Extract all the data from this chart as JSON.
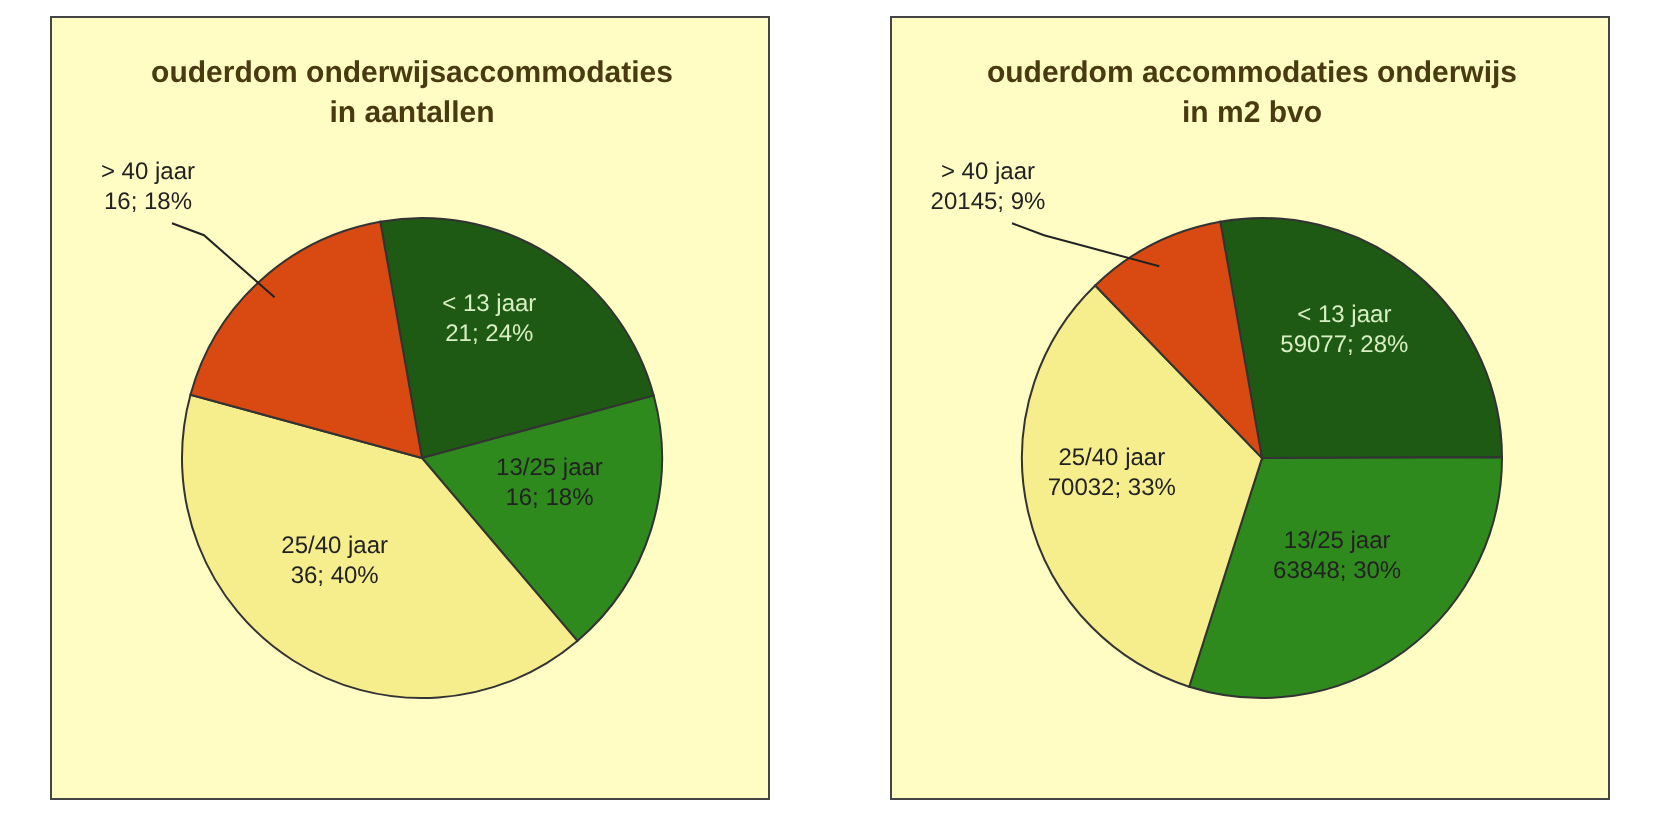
{
  "chart_data": [
    {
      "type": "pie",
      "title": "ouderdom onderwijsaccommodaties\nin aantallen",
      "categories": [
        "< 13 jaar",
        "13/25 jaar",
        "25/40 jaar",
        "> 40 jaar"
      ],
      "values": [
        21,
        16,
        36,
        16
      ],
      "colors": [
        "#1f5a14",
        "#2f8a1e",
        "#f6ee8c",
        "#d84a12"
      ],
      "value_labels": [
        "21; 24%",
        "16; 18%",
        "36; 40%",
        "16; 18%"
      ],
      "legend": false
    },
    {
      "type": "pie",
      "title": "ouderdom accommodaties onderwijs\nin m2 bvo",
      "categories": [
        "< 13 jaar",
        "13/25 jaar",
        "25/40 jaar",
        "> 40 jaar"
      ],
      "values": [
        59077,
        63848,
        70032,
        20145
      ],
      "colors": [
        "#1f5a14",
        "#2f8a1e",
        "#f6ee8c",
        "#d84a12"
      ],
      "value_labels": [
        "59077; 28%",
        "63848; 30%",
        "70032; 33%",
        "20145; 9%"
      ],
      "legend": false
    }
  ]
}
